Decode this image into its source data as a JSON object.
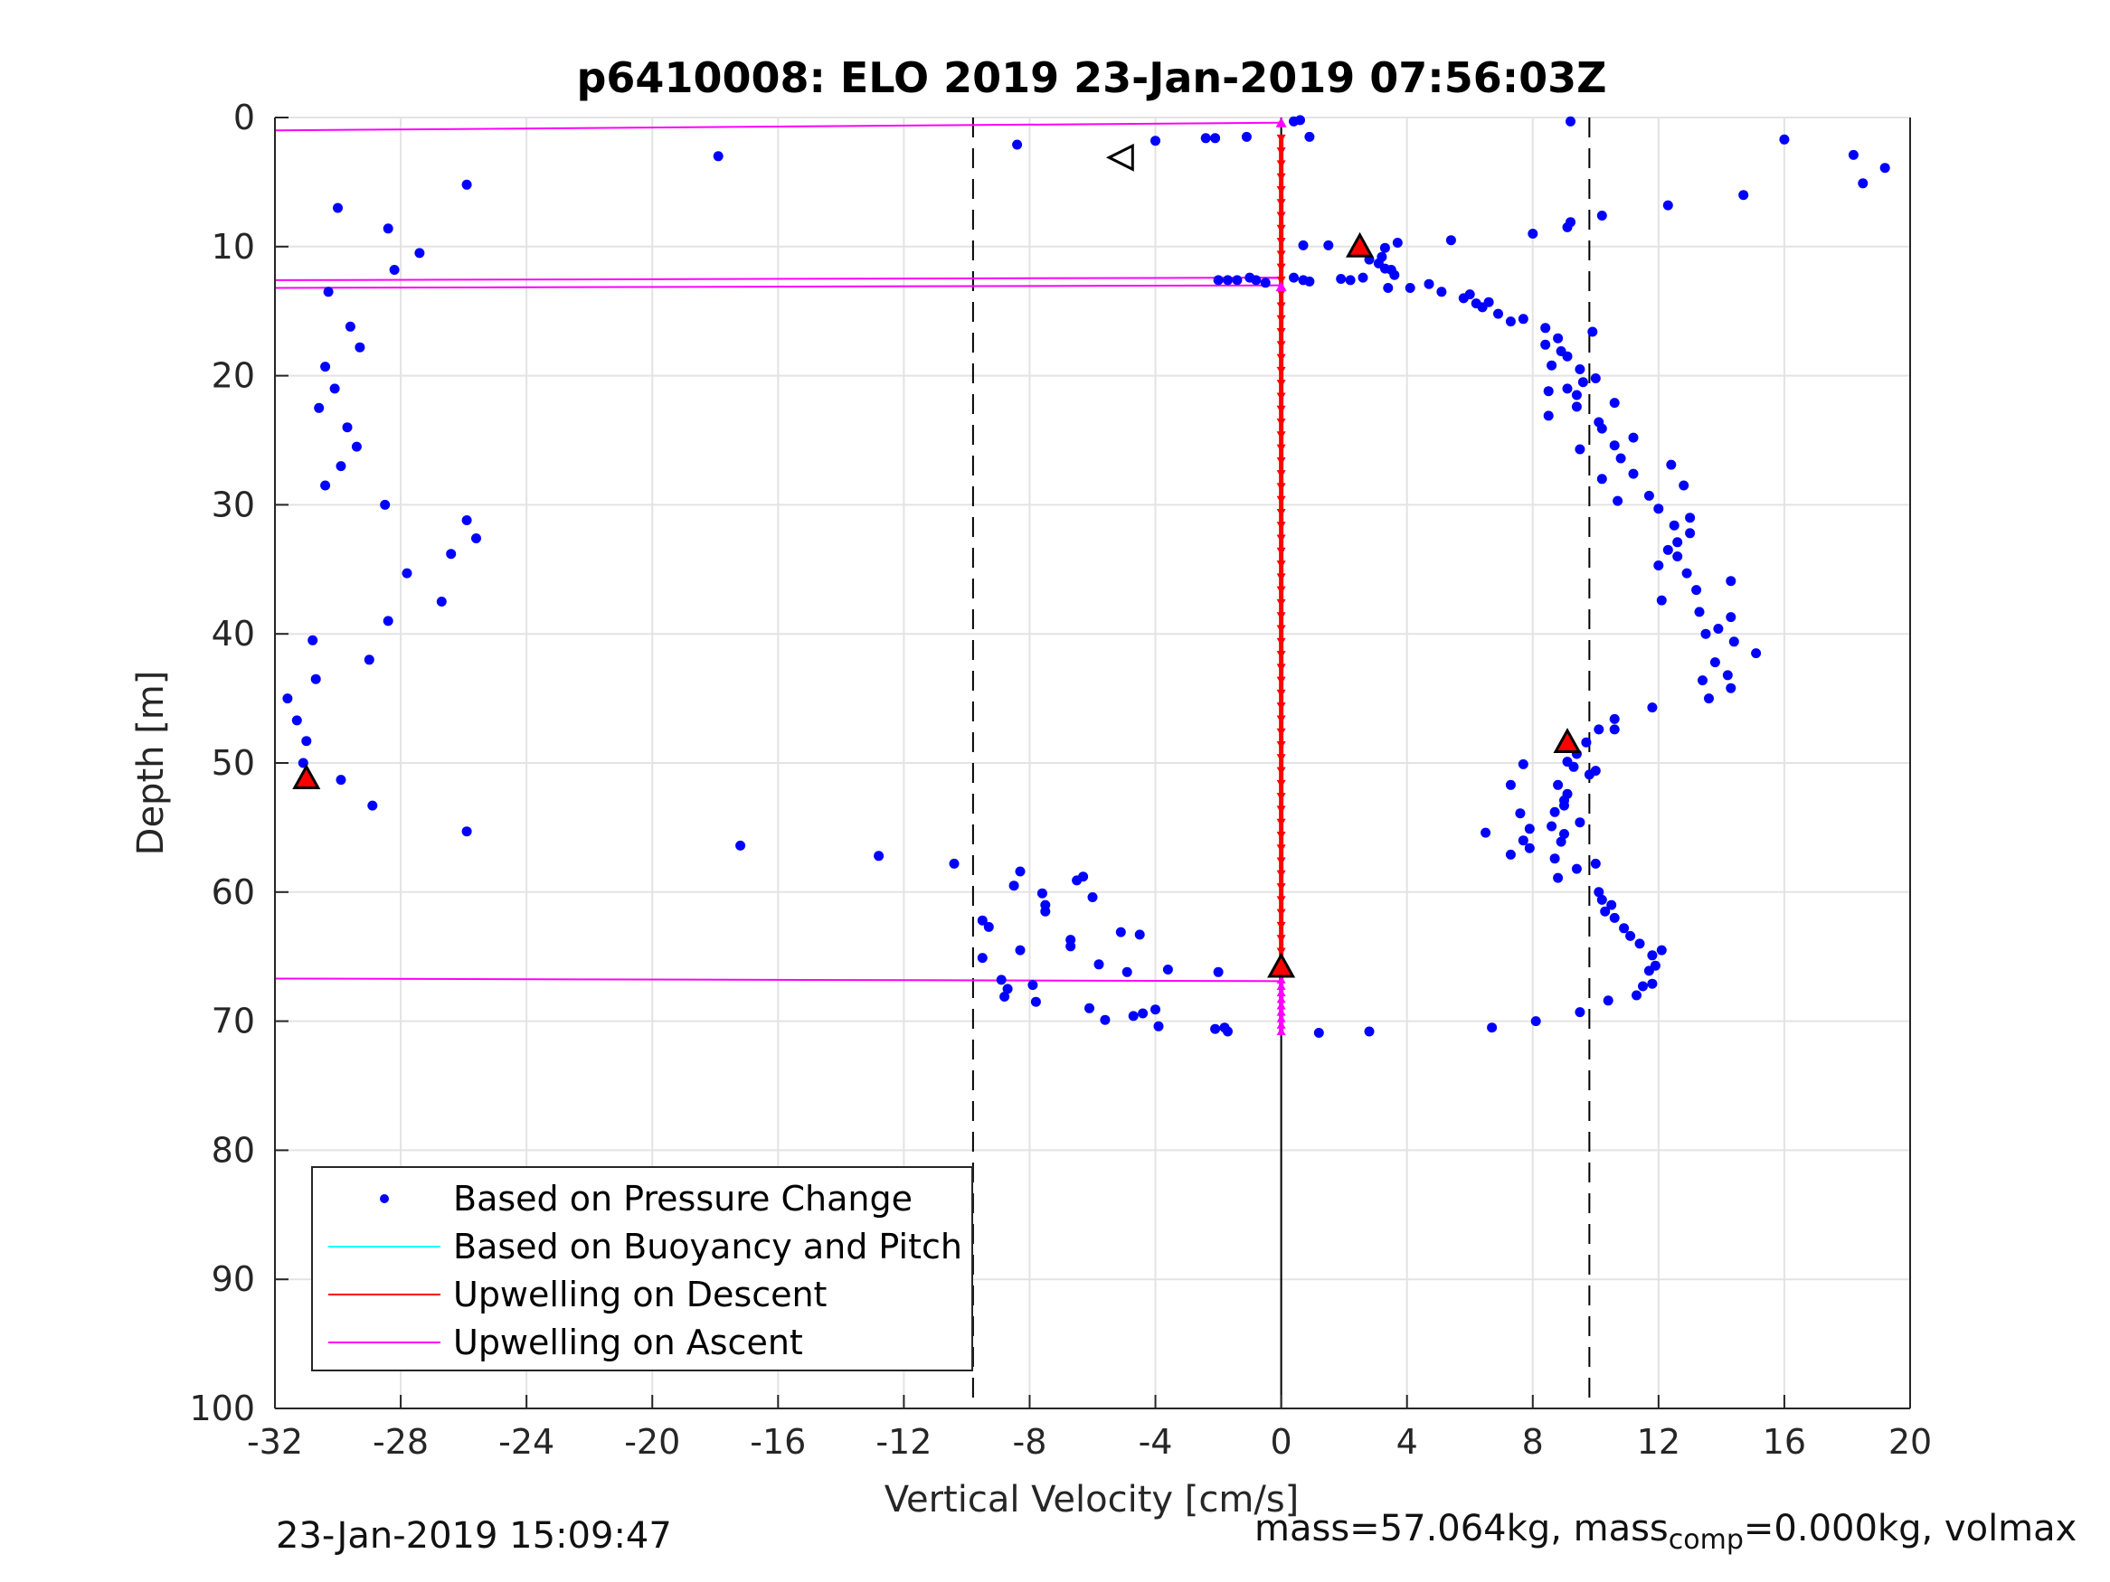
{
  "chart_data": {
    "type": "scatter",
    "title": "p6410008: ELO 2019 23-Jan-2019 07:56:03Z",
    "xlabel": "Vertical Velocity [cm/s]",
    "ylabel": "Depth [m]",
    "xlim": [
      -32,
      20
    ],
    "ylim": [
      0,
      100
    ],
    "y_reversed": true,
    "grid": true,
    "xticks": [
      "-32",
      "-28",
      "-24",
      "-20",
      "-16",
      "-12",
      "-8",
      "-4",
      "0",
      "4",
      "8",
      "12",
      "16",
      "20"
    ],
    "yticks": [
      "0",
      "10",
      "20",
      "30",
      "40",
      "50",
      "60",
      "70",
      "80",
      "90",
      "100"
    ],
    "legend_position": "bottom-left",
    "legend": [
      {
        "label": "Based on Pressure Change",
        "color": "#0000ff"
      },
      {
        "label": "Based on Buoyancy and Pitch",
        "color": "#00ffff"
      },
      {
        "label": "Upwelling on Descent",
        "color": "#ff0000"
      },
      {
        "label": "Upwelling on Ascent",
        "color": "#ff00ff"
      }
    ],
    "reference_lines": {
      "vertical_dashed": [
        -9.8,
        9.8
      ],
      "vertical_solid": [
        0
      ]
    },
    "pressure_points": [
      [
        -31.6,
        45.0
      ],
      [
        -31.3,
        46.7
      ],
      [
        -31.0,
        48.3
      ],
      [
        -31.1,
        50.0
      ],
      [
        -30.8,
        40.5
      ],
      [
        -30.7,
        43.5
      ],
      [
        -30.6,
        22.5
      ],
      [
        -30.4,
        19.3
      ],
      [
        -30.3,
        13.5
      ],
      [
        -30.4,
        28.5
      ],
      [
        -30.1,
        21.0
      ],
      [
        -29.9,
        27.0
      ],
      [
        -30.0,
        7.0
      ],
      [
        -29.9,
        51.3
      ],
      [
        -29.7,
        24.0
      ],
      [
        -29.6,
        16.2
      ],
      [
        -29.4,
        25.5
      ],
      [
        -29.3,
        17.8
      ],
      [
        -28.9,
        53.3
      ],
      [
        -29.0,
        42.0
      ],
      [
        -28.4,
        8.6
      ],
      [
        -28.5,
        30.0
      ],
      [
        -28.4,
        39.0
      ],
      [
        -28.2,
        11.8
      ],
      [
        -27.8,
        35.3
      ],
      [
        -27.4,
        10.5
      ],
      [
        -26.7,
        37.5
      ],
      [
        -26.4,
        33.8
      ],
      [
        -25.9,
        31.2
      ],
      [
        -25.9,
        55.3
      ],
      [
        -25.9,
        5.2
      ],
      [
        -25.6,
        32.6
      ],
      [
        -17.9,
        3.0
      ],
      [
        -17.2,
        56.4
      ],
      [
        -12.8,
        57.2
      ],
      [
        -10.4,
        57.8
      ],
      [
        -8.4,
        2.1
      ],
      [
        -9.5,
        62.2
      ],
      [
        -9.3,
        62.7
      ],
      [
        -9.5,
        65.1
      ],
      [
        -8.9,
        66.8
      ],
      [
        -8.8,
        68.1
      ],
      [
        -8.7,
        67.5
      ],
      [
        -8.5,
        59.5
      ],
      [
        -8.3,
        58.4
      ],
      [
        -8.3,
        64.5
      ],
      [
        -7.9,
        67.2
      ],
      [
        -7.8,
        68.5
      ],
      [
        -7.6,
        60.1
      ],
      [
        -7.5,
        61.0
      ],
      [
        -7.5,
        61.5
      ],
      [
        -6.7,
        63.7
      ],
      [
        -6.7,
        64.2
      ],
      [
        -6.5,
        59.1
      ],
      [
        -6.3,
        58.8
      ],
      [
        -6.1,
        69.0
      ],
      [
        -6.0,
        60.4
      ],
      [
        -5.8,
        65.6
      ],
      [
        -5.6,
        69.9
      ],
      [
        -5.1,
        63.1
      ],
      [
        -4.9,
        66.2
      ],
      [
        -4.7,
        69.6
      ],
      [
        -4.5,
        63.3
      ],
      [
        -4.4,
        69.4
      ],
      [
        -4.0,
        69.1
      ],
      [
        -3.9,
        70.4
      ],
      [
        -3.6,
        66.0
      ],
      [
        -2.1,
        70.6
      ],
      [
        -2.0,
        66.2
      ],
      [
        -1.8,
        70.5
      ],
      [
        -1.7,
        70.8
      ],
      [
        -4.0,
        1.8
      ],
      [
        -2.4,
        1.6
      ],
      [
        -2.1,
        1.6
      ],
      [
        -1.1,
        1.5
      ],
      [
        0.6,
        0.2
      ],
      [
        0.4,
        0.3
      ],
      [
        0.9,
        1.5
      ],
      [
        -2.0,
        12.6
      ],
      [
        -1.7,
        12.6
      ],
      [
        -1.4,
        12.6
      ],
      [
        -1.0,
        12.4
      ],
      [
        -0.8,
        12.6
      ],
      [
        -0.5,
        12.8
      ],
      [
        0.4,
        12.4
      ],
      [
        0.7,
        12.6
      ],
      [
        0.9,
        12.7
      ],
      [
        0.7,
        9.9
      ],
      [
        1.5,
        9.9
      ],
      [
        1.9,
        12.5
      ],
      [
        2.2,
        12.6
      ],
      [
        2.6,
        12.4
      ],
      [
        2.8,
        11.0
      ],
      [
        3.1,
        11.3
      ],
      [
        3.2,
        10.8
      ],
      [
        3.3,
        11.7
      ],
      [
        3.3,
        10.1
      ],
      [
        3.5,
        11.8
      ],
      [
        3.4,
        13.2
      ],
      [
        3.6,
        12.2
      ],
      [
        3.7,
        9.7
      ],
      [
        4.1,
        13.2
      ],
      [
        4.7,
        12.9
      ],
      [
        5.1,
        13.5
      ],
      [
        5.4,
        9.5
      ],
      [
        5.8,
        14.0
      ],
      [
        6.0,
        13.7
      ],
      [
        6.2,
        14.4
      ],
      [
        6.4,
        14.7
      ],
      [
        6.6,
        14.3
      ],
      [
        6.9,
        15.2
      ],
      [
        7.3,
        15.8
      ],
      [
        7.7,
        15.6
      ],
      [
        8.0,
        9.0
      ],
      [
        8.4,
        16.3
      ],
      [
        8.4,
        17.6
      ],
      [
        8.6,
        19.2
      ],
      [
        8.8,
        17.1
      ],
      [
        8.5,
        21.2
      ],
      [
        8.5,
        23.1
      ],
      [
        8.9,
        18.1
      ],
      [
        9.1,
        18.5
      ],
      [
        9.1,
        21.0
      ],
      [
        9.1,
        8.5
      ],
      [
        9.2,
        8.1
      ],
      [
        9.2,
        0.3
      ],
      [
        9.4,
        22.4
      ],
      [
        9.4,
        21.5
      ],
      [
        9.5,
        19.5
      ],
      [
        9.5,
        25.7
      ],
      [
        9.6,
        20.5
      ],
      [
        9.9,
        16.6
      ],
      [
        10.0,
        20.2
      ],
      [
        10.1,
        23.6
      ],
      [
        10.2,
        7.6
      ],
      [
        10.2,
        24.1
      ],
      [
        10.2,
        28.0
      ],
      [
        10.6,
        22.1
      ],
      [
        10.6,
        25.4
      ],
      [
        10.7,
        29.7
      ],
      [
        10.8,
        26.4
      ],
      [
        11.2,
        24.8
      ],
      [
        11.2,
        27.6
      ],
      [
        11.7,
        29.3
      ],
      [
        12.0,
        30.3
      ],
      [
        12.1,
        37.4
      ],
      [
        12.0,
        34.7
      ],
      [
        12.3,
        33.5
      ],
      [
        12.3,
        6.8
      ],
      [
        12.4,
        26.9
      ],
      [
        12.5,
        31.6
      ],
      [
        12.6,
        34.0
      ],
      [
        12.6,
        32.9
      ],
      [
        12.8,
        28.5
      ],
      [
        12.9,
        35.3
      ],
      [
        13.0,
        32.2
      ],
      [
        13.0,
        31.0
      ],
      [
        13.2,
        36.6
      ],
      [
        13.3,
        38.3
      ],
      [
        13.5,
        40.0
      ],
      [
        13.4,
        43.6
      ],
      [
        13.6,
        45.0
      ],
      [
        13.8,
        42.2
      ],
      [
        13.9,
        39.6
      ],
      [
        14.2,
        43.2
      ],
      [
        14.3,
        38.7
      ],
      [
        14.3,
        44.2
      ],
      [
        14.3,
        35.9
      ],
      [
        14.4,
        40.6
      ],
      [
        14.7,
        6.0
      ],
      [
        15.1,
        41.5
      ],
      [
        16.0,
        1.7
      ],
      [
        18.2,
        2.9
      ],
      [
        18.5,
        5.1
      ],
      [
        19.2,
        3.9
      ],
      [
        11.8,
        45.7
      ],
      [
        10.6,
        47.4
      ],
      [
        10.6,
        46.6
      ],
      [
        10.1,
        47.4
      ],
      [
        9.7,
        48.4
      ],
      [
        9.4,
        49.3
      ],
      [
        9.8,
        50.9
      ],
      [
        10.0,
        50.6
      ],
      [
        9.3,
        50.3
      ],
      [
        9.1,
        49.9
      ],
      [
        8.8,
        51.7
      ],
      [
        9.1,
        52.4
      ],
      [
        9.0,
        52.9
      ],
      [
        9.0,
        53.3
      ],
      [
        8.7,
        53.8
      ],
      [
        8.6,
        54.9
      ],
      [
        9.0,
        55.5
      ],
      [
        9.5,
        54.6
      ],
      [
        7.7,
        50.1
      ],
      [
        7.3,
        51.7
      ],
      [
        7.6,
        53.9
      ],
      [
        7.9,
        55.1
      ],
      [
        6.5,
        55.4
      ],
      [
        7.9,
        56.6
      ],
      [
        7.7,
        56.0
      ],
      [
        7.3,
        57.1
      ],
      [
        8.9,
        56.1
      ],
      [
        8.7,
        57.4
      ],
      [
        8.8,
        58.9
      ],
      [
        9.4,
        58.2
      ],
      [
        10.0,
        57.8
      ],
      [
        10.1,
        60.0
      ],
      [
        10.2,
        60.6
      ],
      [
        10.3,
        61.5
      ],
      [
        10.5,
        61.0
      ],
      [
        10.6,
        62.0
      ],
      [
        10.9,
        62.8
      ],
      [
        11.1,
        63.4
      ],
      [
        11.4,
        64.0
      ],
      [
        11.8,
        64.9
      ],
      [
        12.1,
        64.5
      ],
      [
        11.9,
        65.7
      ],
      [
        11.7,
        66.1
      ],
      [
        11.8,
        67.1
      ],
      [
        11.5,
        67.3
      ],
      [
        11.3,
        68.0
      ],
      [
        10.4,
        68.4
      ],
      [
        9.5,
        69.3
      ],
      [
        8.1,
        70.0
      ],
      [
        6.7,
        70.5
      ],
      [
        2.8,
        70.8
      ],
      [
        1.2,
        70.9
      ]
    ],
    "black_line": {
      "x": 0,
      "y_from": 0,
      "y_to": 100
    },
    "descent_upwelling": {
      "x": [
        -0.1,
        0.1
      ],
      "y_from": 1.6,
      "y_to": 66.9
    },
    "ascent_upwelling_at_zero": {
      "x": 0,
      "y_from": 66.8,
      "y_to": 71.0
    },
    "ascent_lines": [
      {
        "x": [
          -32,
          0
        ],
        "y": [
          1.0,
          0.4
        ]
      },
      {
        "x": [
          -32,
          0
        ],
        "y": [
          12.6,
          12.4
        ]
      },
      {
        "x": [
          -32,
          0
        ],
        "y": [
          13.2,
          13.0
        ]
      },
      {
        "x": [
          -32,
          0
        ],
        "y": [
          66.7,
          66.9
        ]
      }
    ],
    "triangle_markers": [
      {
        "x": 2.5,
        "y": 10.0,
        "fill": "#ff0000",
        "dir": "up"
      },
      {
        "x": -31.0,
        "y": 51.2,
        "fill": "#ff0000",
        "dir": "up"
      },
      {
        "x": 9.1,
        "y": 48.4,
        "fill": "#ff0000",
        "dir": "up"
      },
      {
        "x": 0.0,
        "y": 65.8,
        "fill": "#ff0000",
        "dir": "up"
      },
      {
        "x": -5.1,
        "y": 3.1,
        "fill": "#ffffff",
        "dir": "left"
      }
    ]
  },
  "footer": {
    "timestamp": "23-Jan-2019 15:09:47",
    "mass_text": "mass=57.064kg, mass",
    "mass_sub": "comp",
    "mass_rest": "=0.000kg, volmax"
  }
}
